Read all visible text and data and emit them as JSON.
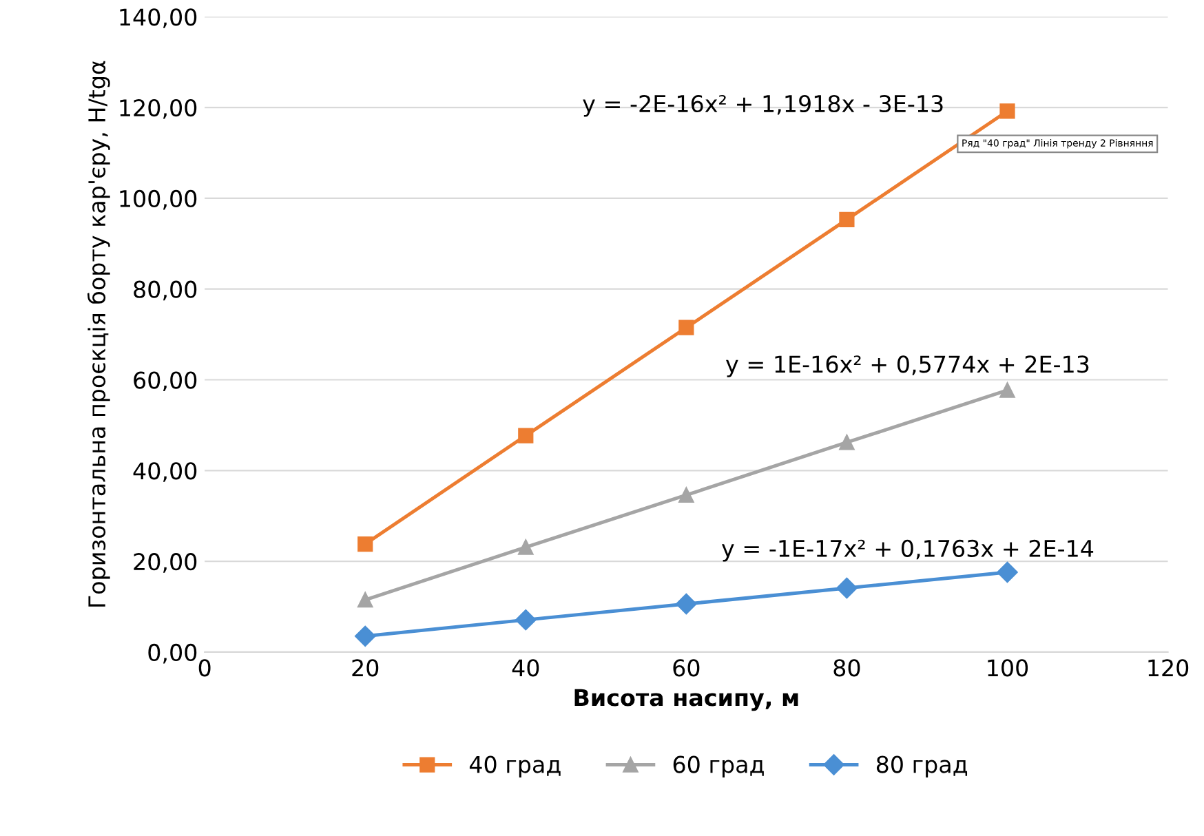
{
  "chart_data": {
    "type": "line",
    "xlabel": "Висота насипу, м",
    "ylabel": "Горизонтальна проєкція борту кар'єру, H/tgα",
    "x": [
      20,
      40,
      60,
      80,
      100
    ],
    "series": [
      {
        "name": "40 град",
        "color": "#ed7d31",
        "marker": "square",
        "values": [
          23.8,
          47.7,
          71.5,
          95.3,
          119.2
        ]
      },
      {
        "name": "60 град",
        "color": "#a5a5a5",
        "marker": "triangle",
        "values": [
          11.5,
          23.1,
          34.6,
          46.2,
          57.7
        ]
      },
      {
        "name": "80 град",
        "color": "#4a8fd4",
        "marker": "diamond",
        "values": [
          3.5,
          7.1,
          10.6,
          14.1,
          17.6
        ]
      }
    ],
    "xlim": [
      0,
      120
    ],
    "xticks": [
      0,
      20,
      40,
      60,
      80,
      100,
      120
    ],
    "ylim": [
      0,
      140
    ],
    "yticks": [
      {
        "value": 0,
        "label": "0,00"
      },
      {
        "value": 20,
        "label": "20,00"
      },
      {
        "value": 40,
        "label": "40,00"
      },
      {
        "value": 60,
        "label": "60,00"
      },
      {
        "value": 80,
        "label": "80,00"
      },
      {
        "value": 100,
        "label": "100,00"
      },
      {
        "value": 120,
        "label": "120,00"
      },
      {
        "value": 140,
        "label": "140,00"
      }
    ],
    "grid": "y",
    "legend": "bottom",
    "line_style": "solid",
    "annotations": [
      "y = -2E-16x² + 1,1918x - 3E-13",
      "y = 1E-16x² + 0,5774x + 2E-13",
      "y = -1E-17x² + 0,1763x + 2E-14",
      "Ряд \"40 град\" Лінія тренду 2 Рівняння"
    ]
  }
}
